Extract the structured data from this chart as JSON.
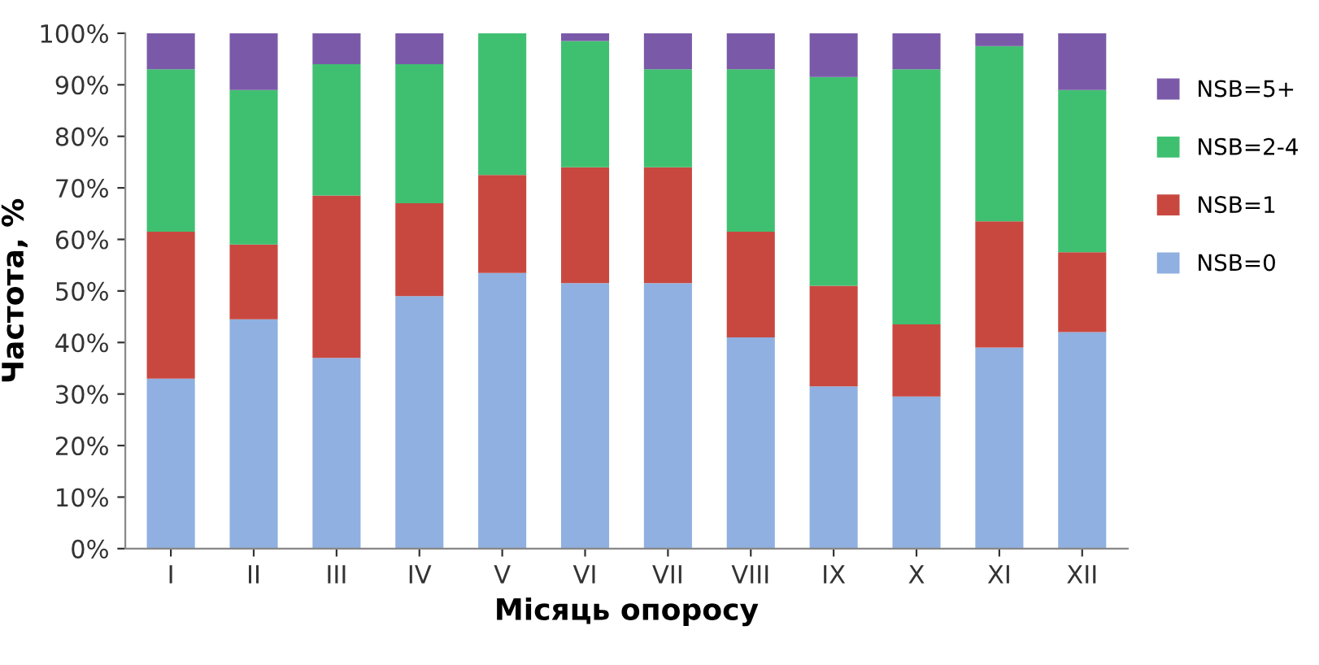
{
  "chart_data": {
    "type": "bar",
    "stacked": true,
    "xlabel": "Місяць опоросу",
    "ylabel": "Частота, %",
    "categories": [
      "I",
      "II",
      "III",
      "IV",
      "V",
      "VI",
      "VII",
      "VIII",
      "IX",
      "X",
      "XI",
      "XII"
    ],
    "series": [
      {
        "name": "NSB=0",
        "color": "#8fb0e0",
        "values": [
          33,
          44.5,
          37,
          49,
          53.5,
          51.5,
          51.5,
          41,
          31.5,
          29.5,
          39,
          42
        ]
      },
      {
        "name": "NSB=1",
        "color": "#c84840",
        "values": [
          28.5,
          14.5,
          31.5,
          18,
          19,
          22.5,
          22.5,
          20.5,
          19.5,
          14,
          24.5,
          15.5
        ]
      },
      {
        "name": "NSB=2-4",
        "color": "#3fc070",
        "values": [
          31.5,
          30,
          25.5,
          27,
          27.5,
          24.5,
          19,
          31.5,
          40.5,
          49.5,
          34,
          31.5
        ]
      },
      {
        "name": "NSB=5+",
        "color": "#7a5aa8",
        "values": [
          7,
          11,
          6,
          6,
          0,
          1.5,
          7,
          7,
          8.5,
          7,
          2.5,
          11
        ]
      }
    ],
    "ylim": [
      0,
      100
    ],
    "yticks": [
      {
        "value": 0,
        "label": "0%"
      },
      {
        "value": 10,
        "label": "10%"
      },
      {
        "value": 20,
        "label": "20%"
      },
      {
        "value": 30,
        "label": "30%"
      },
      {
        "value": 40,
        "label": "40%"
      },
      {
        "value": 50,
        "label": "50%"
      },
      {
        "value": 60,
        "label": "60%"
      },
      {
        "value": 70,
        "label": "70%"
      },
      {
        "value": 80,
        "label": "80%"
      },
      {
        "value": 90,
        "label": "90%"
      },
      {
        "value": 100,
        "label": "100%"
      }
    ],
    "grid": false,
    "legend": "right"
  }
}
